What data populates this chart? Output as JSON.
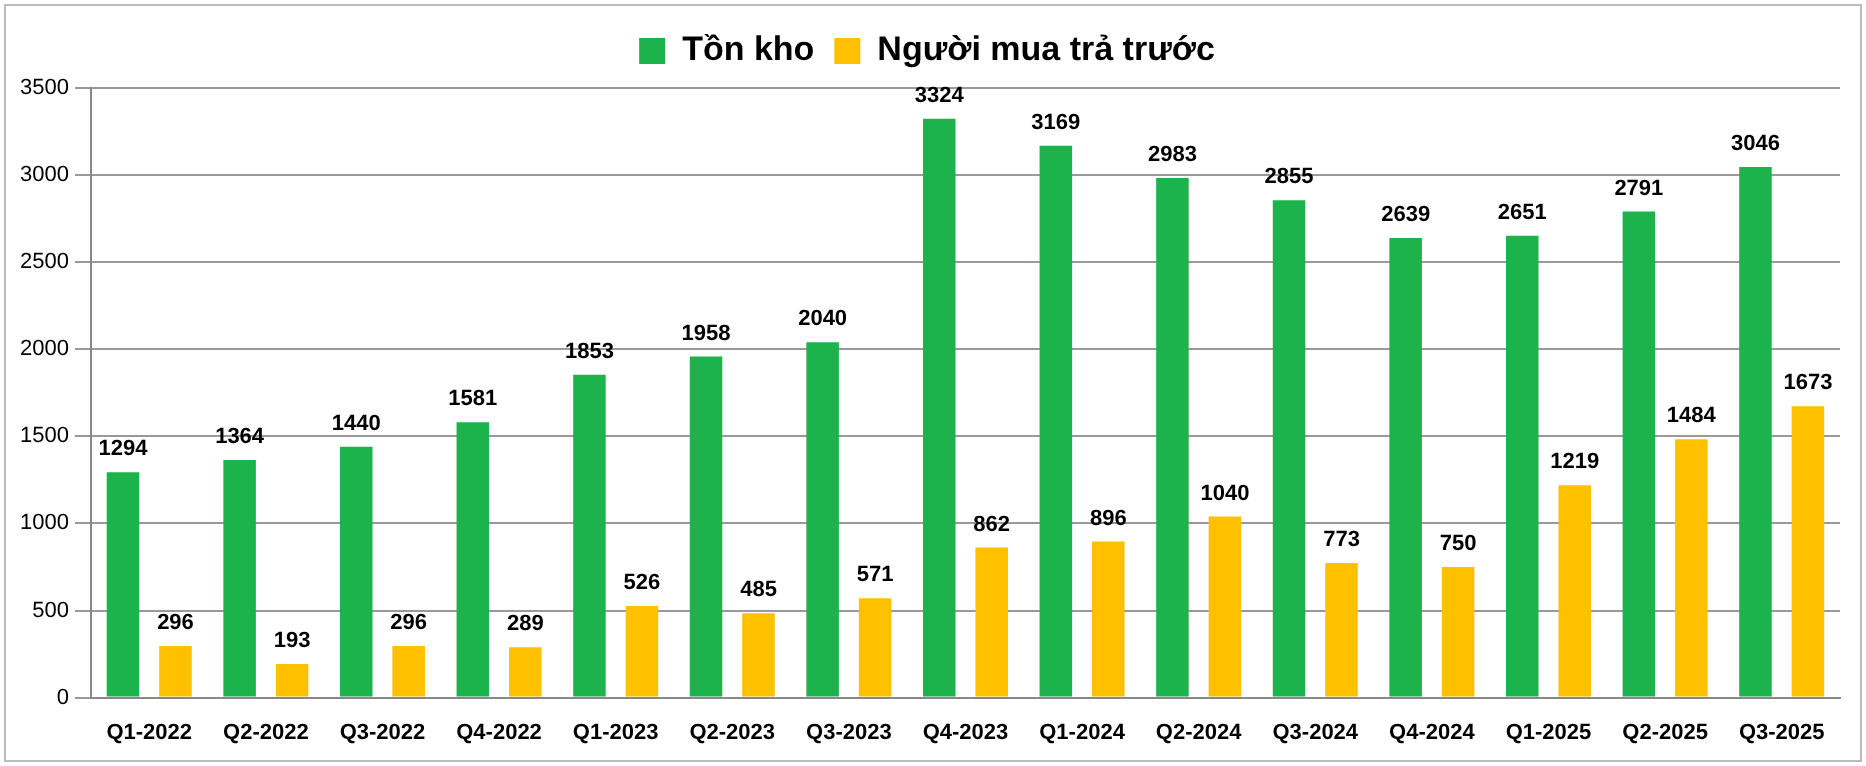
{
  "chart_data": {
    "type": "bar",
    "categories": [
      "Q1-2022",
      "Q2-2022",
      "Q3-2022",
      "Q4-2022",
      "Q1-2023",
      "Q2-2023",
      "Q3-2023",
      "Q4-2023",
      "Q1-2024",
      "Q2-2024",
      "Q3-2024",
      "Q4-2024",
      "Q1-2025",
      "Q2-2025",
      "Q3-2025"
    ],
    "series": [
      {
        "name": "Tồn kho",
        "color": "#1db34c",
        "values": [
          1294,
          1364,
          1440,
          1581,
          1853,
          1958,
          2040,
          3324,
          3169,
          2983,
          2855,
          2639,
          2651,
          2791,
          3046
        ]
      },
      {
        "name": "Người mua trả trước",
        "color": "#ffc000",
        "values": [
          296,
          193,
          296,
          289,
          526,
          485,
          571,
          862,
          896,
          1040,
          773,
          750,
          1219,
          1484,
          1673
        ]
      }
    ],
    "ylim": [
      0,
      3500
    ],
    "yticks": [
      0,
      500,
      1000,
      1500,
      2000,
      2500,
      3000,
      3500
    ],
    "grid": "y",
    "legend": "top",
    "data_labels": true
  }
}
